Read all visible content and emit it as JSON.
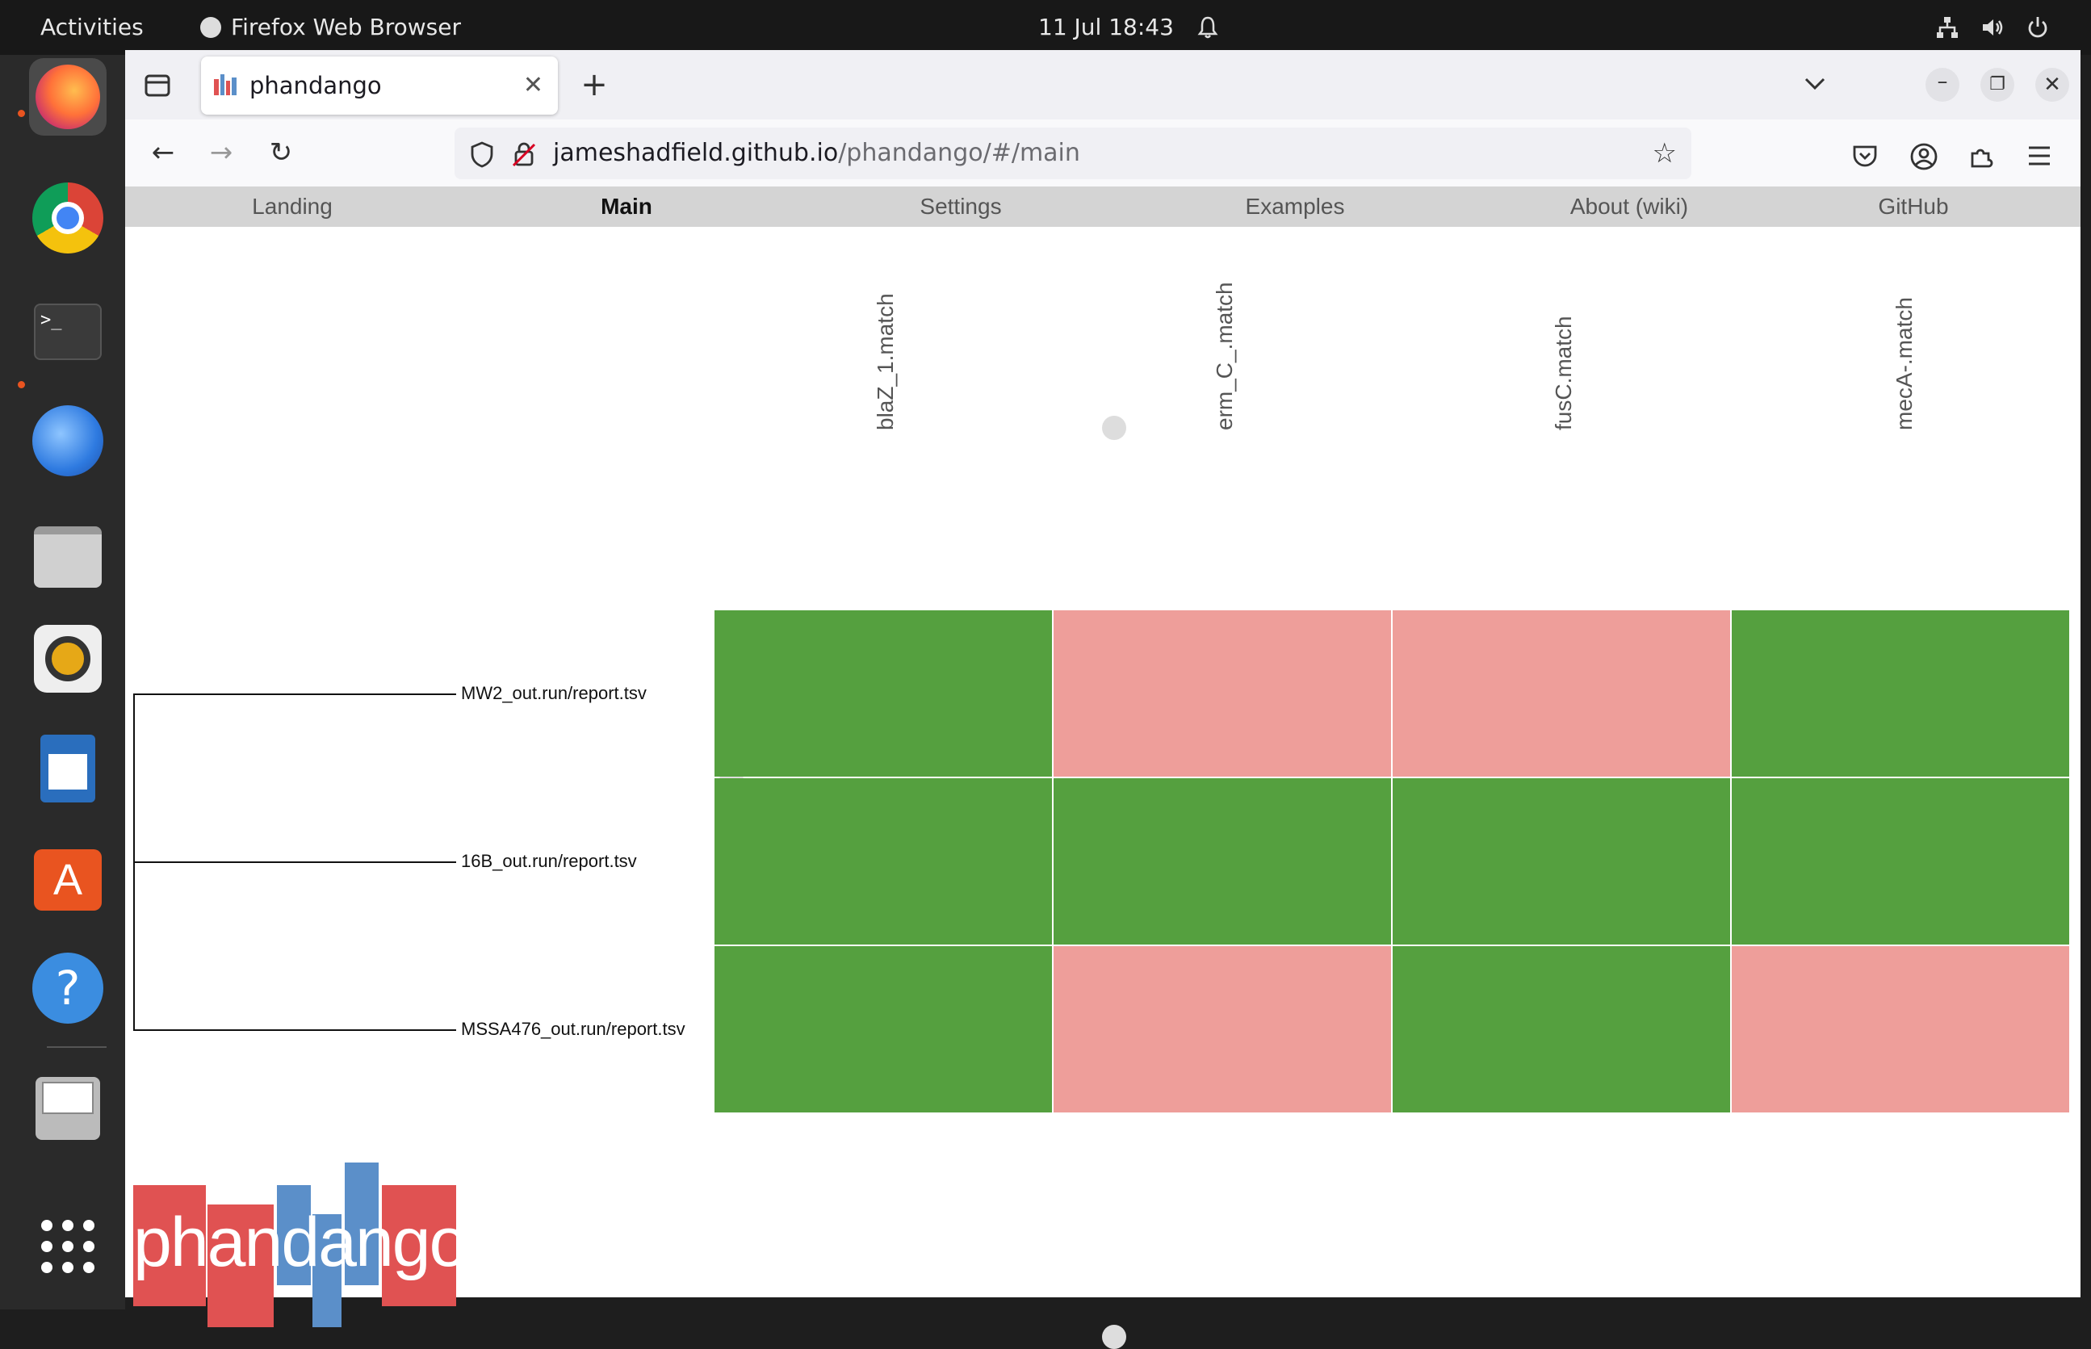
{
  "topbar": {
    "activities": "Activities",
    "app_name": "Firefox Web Browser",
    "clock": "11 Jul  18:43"
  },
  "browser": {
    "tab_title": "phandango",
    "url_host": "jameshadfield.github.io",
    "url_path": "/phandango/#/main"
  },
  "site_menu": [
    "Landing",
    "Main",
    "Settings",
    "Examples",
    "About (wiki)",
    "GitHub"
  ],
  "active_menu": "Main",
  "columns": [
    "blaZ_1.match",
    "erm_C_.match",
    "fusC.match",
    "mecA-.match"
  ],
  "rows": [
    "MW2_out.run/report.tsv",
    "16B_out.run/report.tsv",
    "MSSA476_out.run/report.tsv"
  ],
  "matrix": [
    [
      "present",
      "absent",
      "absent",
      "present"
    ],
    [
      "present",
      "present",
      "present",
      "present"
    ],
    [
      "present",
      "absent",
      "present",
      "absent"
    ]
  ],
  "colors": {
    "present": "#55a03f",
    "absent": "#ee9e9a",
    "logo_red": "#e05252",
    "logo_blue": "#5b8fc9"
  },
  "logo_text": "phandango"
}
